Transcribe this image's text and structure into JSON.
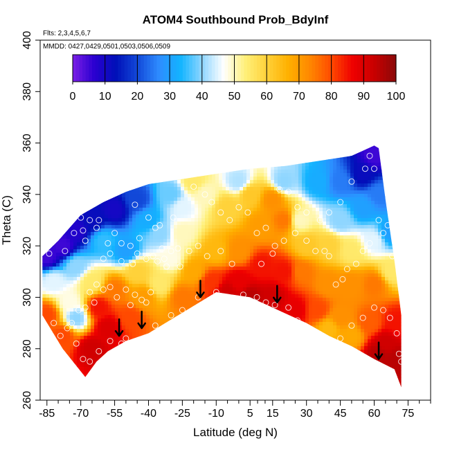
{
  "chart_data": {
    "type": "heatmap",
    "title": "ATOM4 Southbound Prob_BdyInf",
    "annotations": [
      "Flts: 2,3,4,5,6,7",
      "MMDD: 0427,0429,0501,0503,0506,0509"
    ],
    "xlabel": "Latitude (deg N)",
    "ylabel": "Theta (C)",
    "xlim": [
      -88,
      85
    ],
    "ylim": [
      260,
      400
    ],
    "x_ticks": [
      -85,
      -70,
      -55,
      -40,
      -25,
      -10,
      5,
      15,
      30,
      45,
      60,
      75
    ],
    "y_ticks": [
      260,
      280,
      300,
      320,
      340,
      360,
      380,
      400
    ],
    "colorbar": {
      "range": [
        0,
        100
      ],
      "ticks": [
        0,
        10,
        20,
        30,
        40,
        50,
        60,
        70,
        80,
        90,
        100
      ],
      "colors": [
        "#7b1fe6",
        "#2a00d0",
        "#0010b8",
        "#1248d8",
        "#2e8cff",
        "#12b4ff",
        "#8fd6ff",
        "#ffffff",
        "#fff07a",
        "#ffd23a",
        "#ffb000",
        "#ff8800",
        "#ff4a00",
        "#ef0000",
        "#c80000",
        "#8a0a0a"
      ]
    },
    "domain_top": [
      [
        -87,
        316
      ],
      [
        -80,
        322
      ],
      [
        -70,
        332
      ],
      [
        -60,
        337
      ],
      [
        -50,
        341
      ],
      [
        -40,
        344
      ],
      [
        -25,
        346
      ],
      [
        -10,
        348
      ],
      [
        5,
        350
      ],
      [
        20,
        351
      ],
      [
        35,
        353
      ],
      [
        50,
        355
      ],
      [
        55,
        357
      ],
      [
        60,
        359
      ],
      [
        62,
        358
      ],
      [
        65,
        338
      ],
      [
        69,
        314
      ],
      [
        71,
        300
      ],
      [
        72,
        293
      ]
    ],
    "domain_bottom": [
      [
        72,
        265
      ],
      [
        69,
        272
      ],
      [
        60,
        276
      ],
      [
        50,
        281
      ],
      [
        40,
        285
      ],
      [
        30,
        290
      ],
      [
        20,
        294
      ],
      [
        5,
        300
      ],
      [
        -10,
        302
      ],
      [
        -25,
        294
      ],
      [
        -40,
        286
      ],
      [
        -50,
        283
      ],
      [
        -58,
        279
      ],
      [
        -63,
        275
      ],
      [
        -68,
        269
      ],
      [
        -78,
        280
      ],
      [
        -87,
        293
      ]
    ],
    "field": [
      {
        "x": -85,
        "y": 316,
        "v": 5
      },
      {
        "x": -78,
        "y": 320,
        "v": 5
      },
      {
        "x": -72,
        "y": 326,
        "v": 8
      },
      {
        "x": -65,
        "y": 330,
        "v": 12
      },
      {
        "x": -55,
        "y": 334,
        "v": 10
      },
      {
        "x": -45,
        "y": 338,
        "v": 20
      },
      {
        "x": -60,
        "y": 322,
        "v": 35
      },
      {
        "x": -50,
        "y": 318,
        "v": 30
      },
      {
        "x": -82,
        "y": 306,
        "v": 45
      },
      {
        "x": -72,
        "y": 312,
        "v": 40
      },
      {
        "x": -65,
        "y": 306,
        "v": 55
      },
      {
        "x": -75,
        "y": 298,
        "v": 48
      },
      {
        "x": -72,
        "y": 292,
        "v": 40
      },
      {
        "x": -85,
        "y": 293,
        "v": 80
      },
      {
        "x": -78,
        "y": 285,
        "v": 80
      },
      {
        "x": -65,
        "y": 280,
        "v": 92
      },
      {
        "x": -58,
        "y": 288,
        "v": 90
      },
      {
        "x": -62,
        "y": 296,
        "v": 85
      },
      {
        "x": -55,
        "y": 303,
        "v": 75
      },
      {
        "x": -48,
        "y": 292,
        "v": 80
      },
      {
        "x": -42,
        "y": 300,
        "v": 70
      },
      {
        "x": -45,
        "y": 310,
        "v": 60
      },
      {
        "x": -35,
        "y": 305,
        "v": 55
      },
      {
        "x": -30,
        "y": 315,
        "v": 48
      },
      {
        "x": -35,
        "y": 325,
        "v": 40
      },
      {
        "x": -40,
        "y": 330,
        "v": 32
      },
      {
        "x": -25,
        "y": 325,
        "v": 50
      },
      {
        "x": -25,
        "y": 335,
        "v": 45
      },
      {
        "x": -15,
        "y": 340,
        "v": 50
      },
      {
        "x": -30,
        "y": 340,
        "v": 38
      },
      {
        "x": -20,
        "y": 345,
        "v": 55
      },
      {
        "x": 0,
        "y": 345,
        "v": 42
      },
      {
        "x": -5,
        "y": 335,
        "v": 60
      },
      {
        "x": 5,
        "y": 340,
        "v": 62
      },
      {
        "x": 15,
        "y": 338,
        "v": 72
      },
      {
        "x": 20,
        "y": 330,
        "v": 75
      },
      {
        "x": 10,
        "y": 328,
        "v": 70
      },
      {
        "x": 0,
        "y": 318,
        "v": 72
      },
      {
        "x": -10,
        "y": 318,
        "v": 65
      },
      {
        "x": -20,
        "y": 310,
        "v": 68
      },
      {
        "x": -25,
        "y": 300,
        "v": 75
      },
      {
        "x": -12,
        "y": 306,
        "v": 82
      },
      {
        "x": 0,
        "y": 306,
        "v": 88
      },
      {
        "x": 10,
        "y": 312,
        "v": 85
      },
      {
        "x": 15,
        "y": 300,
        "v": 92
      },
      {
        "x": 5,
        "y": 300,
        "v": 95
      },
      {
        "x": -5,
        "y": 302,
        "v": 92
      },
      {
        "x": 20,
        "y": 310,
        "v": 85
      },
      {
        "x": 25,
        "y": 295,
        "v": 88
      },
      {
        "x": 28,
        "y": 310,
        "v": 75
      },
      {
        "x": 30,
        "y": 320,
        "v": 62
      },
      {
        "x": 27,
        "y": 330,
        "v": 50
      },
      {
        "x": 20,
        "y": 345,
        "v": 40
      },
      {
        "x": 35,
        "y": 345,
        "v": 32
      },
      {
        "x": 45,
        "y": 345,
        "v": 25
      },
      {
        "x": 55,
        "y": 348,
        "v": 12
      },
      {
        "x": 60,
        "y": 355,
        "v": 5
      },
      {
        "x": 62,
        "y": 340,
        "v": 25
      },
      {
        "x": 55,
        "y": 335,
        "v": 30
      },
      {
        "x": 45,
        "y": 330,
        "v": 40
      },
      {
        "x": 40,
        "y": 320,
        "v": 60
      },
      {
        "x": 50,
        "y": 318,
        "v": 55
      },
      {
        "x": 60,
        "y": 322,
        "v": 45
      },
      {
        "x": 67,
        "y": 325,
        "v": 30
      },
      {
        "x": 68,
        "y": 310,
        "v": 55
      },
      {
        "x": 60,
        "y": 305,
        "v": 75
      },
      {
        "x": 50,
        "y": 305,
        "v": 72
      },
      {
        "x": 40,
        "y": 305,
        "v": 72
      },
      {
        "x": 35,
        "y": 295,
        "v": 80
      },
      {
        "x": 45,
        "y": 292,
        "v": 72
      },
      {
        "x": 40,
        "y": 288,
        "v": 65
      },
      {
        "x": 50,
        "y": 285,
        "v": 68
      },
      {
        "x": 58,
        "y": 290,
        "v": 78
      },
      {
        "x": 65,
        "y": 282,
        "v": 92
      },
      {
        "x": 70,
        "y": 290,
        "v": 85
      },
      {
        "x": 70,
        "y": 276,
        "v": 95
      },
      {
        "x": 62,
        "y": 278,
        "v": 95
      }
    ],
    "data_points": [
      [
        -84,
        317
      ],
      [
        -77,
        318
      ],
      [
        -73,
        325
      ],
      [
        -70,
        331
      ],
      [
        -69,
        326
      ],
      [
        -68,
        322
      ],
      [
        -66,
        330
      ],
      [
        -63,
        327
      ],
      [
        -62,
        330
      ],
      [
        -58,
        321
      ],
      [
        -55,
        325
      ],
      [
        -52,
        321
      ],
      [
        -48,
        320
      ],
      [
        -46,
        336
      ],
      [
        -44,
        323
      ],
      [
        -40,
        331
      ],
      [
        -37,
        327
      ],
      [
        -35,
        328
      ],
      [
        -29,
        331
      ],
      [
        -60,
        315
      ],
      [
        -57,
        317
      ],
      [
        -52,
        314
      ],
      [
        -47,
        313
      ],
      [
        -45,
        317
      ],
      [
        -41,
        315
      ],
      [
        -38,
        316
      ],
      [
        -36,
        314
      ],
      [
        -33,
        315
      ],
      [
        -30,
        318
      ],
      [
        -27,
        319
      ],
      [
        -22,
        318
      ],
      [
        -66,
        302
      ],
      [
        -63,
        305
      ],
      [
        -60,
        303
      ],
      [
        -57,
        304
      ],
      [
        -54,
        300
      ],
      [
        -50,
        303
      ],
      [
        -48,
        297
      ],
      [
        -46,
        301
      ],
      [
        -43,
        299
      ],
      [
        -41,
        298
      ],
      [
        -39,
        302
      ],
      [
        -64,
        298
      ],
      [
        -68,
        296
      ],
      [
        -71,
        295
      ],
      [
        -74,
        290
      ],
      [
        -76,
        288
      ],
      [
        -79,
        285
      ],
      [
        -82,
        290
      ],
      [
        -72,
        282
      ],
      [
        -69,
        276
      ],
      [
        -66,
        275
      ],
      [
        -62,
        279
      ],
      [
        -57,
        283
      ],
      [
        -52,
        282
      ],
      [
        -50,
        284
      ],
      [
        -47,
        281
      ],
      [
        -45,
        281
      ],
      [
        -37,
        289
      ],
      [
        -30,
        293
      ],
      [
        -25,
        295
      ],
      [
        -18,
        300
      ],
      [
        -10,
        302
      ],
      [
        -5,
        300
      ],
      [
        2,
        301
      ],
      [
        8,
        300
      ],
      [
        12,
        298
      ],
      [
        16,
        297
      ],
      [
        22,
        296
      ],
      [
        26,
        291
      ],
      [
        30,
        288
      ],
      [
        35,
        286
      ],
      [
        40,
        283
      ],
      [
        45,
        284
      ],
      [
        50,
        289
      ],
      [
        55,
        292
      ],
      [
        60,
        296
      ],
      [
        64,
        295
      ],
      [
        67,
        292
      ],
      [
        70,
        286
      ],
      [
        71,
        278
      ],
      [
        72,
        275
      ],
      [
        -20,
        343
      ],
      [
        -15,
        340
      ],
      [
        -12,
        337
      ],
      [
        -8,
        333
      ],
      [
        -4,
        330
      ],
      [
        0,
        335
      ],
      [
        4,
        333
      ],
      [
        8,
        325
      ],
      [
        12,
        327
      ],
      [
        16,
        320
      ],
      [
        18,
        342
      ],
      [
        22,
        341
      ],
      [
        26,
        335
      ],
      [
        30,
        333
      ],
      [
        34,
        318
      ],
      [
        38,
        318
      ],
      [
        40,
        316
      ],
      [
        43,
        305
      ],
      [
        46,
        307
      ],
      [
        48,
        311
      ],
      [
        52,
        313
      ],
      [
        55,
        318
      ],
      [
        58,
        321
      ],
      [
        62,
        330
      ],
      [
        64,
        325
      ],
      [
        66,
        328
      ],
      [
        68,
        316
      ],
      [
        60,
        350
      ],
      [
        58,
        355
      ],
      [
        56,
        350
      ],
      [
        50,
        345
      ],
      [
        45,
        337
      ],
      [
        40,
        333
      ],
      [
        36,
        330
      ],
      [
        30,
        322
      ],
      [
        25,
        325
      ],
      [
        20,
        322
      ],
      [
        15,
        317
      ],
      [
        10,
        313
      ],
      [
        -3,
        313
      ],
      [
        -8,
        318
      ],
      [
        -14,
        316
      ],
      [
        -18,
        320
      ],
      [
        -26,
        312
      ],
      [
        -32,
        312
      ],
      [
        -34,
        319
      ]
    ],
    "arrows": [
      [
        -53,
        285
      ],
      [
        -43,
        288
      ],
      [
        -17,
        300
      ],
      [
        17,
        298
      ],
      [
        62,
        276
      ]
    ]
  }
}
